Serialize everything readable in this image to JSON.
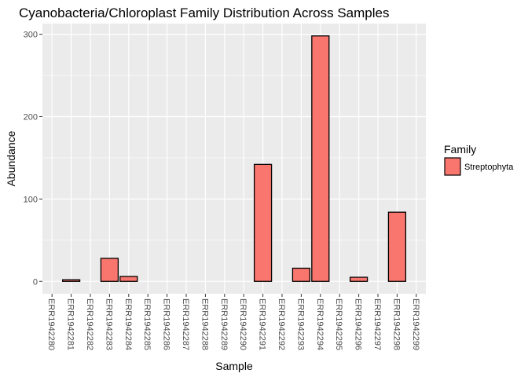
{
  "chart_data": {
    "type": "bar",
    "title": "Cyanobacteria/Chloroplast Family Distribution Across Samples",
    "xlabel": "Sample",
    "ylabel": "Abundance",
    "categories": [
      "ERR1942280",
      "ERR1942281",
      "ERR1942282",
      "ERR1942283",
      "ERR1942284",
      "ERR1942285",
      "ERR1942286",
      "ERR1942287",
      "ERR1942288",
      "ERR1942289",
      "ERR1942290",
      "ERR1942291",
      "ERR1942292",
      "ERR1942293",
      "ERR1942294",
      "ERR1942295",
      "ERR1942296",
      "ERR1942297",
      "ERR1942298",
      "ERR1942299"
    ],
    "series": [
      {
        "name": "Streptophyta",
        "color": "#f8766d",
        "values": [
          0,
          2,
          0,
          28,
          6,
          0,
          0,
          0,
          0,
          0,
          0,
          142,
          0,
          16,
          298,
          0,
          5,
          0,
          84,
          0
        ]
      }
    ],
    "ylim": [
      -15,
      313
    ],
    "yticks": [
      0,
      100,
      200,
      300
    ],
    "grid": true,
    "legend": {
      "title": "Family",
      "position": "right"
    }
  }
}
